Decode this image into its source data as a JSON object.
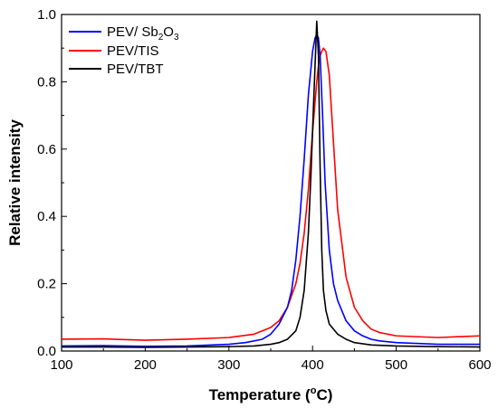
{
  "chart_data": {
    "type": "line",
    "title": "",
    "xlabel": "Temperature (",
    "xlabel_unit": "o",
    "xlabel_unit_suffix": "C)",
    "ylabel": "Relative intensity",
    "xlim": [
      100,
      600
    ],
    "ylim": [
      0,
      1.0
    ],
    "xticks": [
      100,
      200,
      300,
      400,
      500,
      600
    ],
    "yticks": [
      0.0,
      0.2,
      0.4,
      0.6,
      0.8,
      1.0
    ],
    "xtick_labels": [
      "100",
      "200",
      "300",
      "400",
      "500",
      "600"
    ],
    "ytick_labels": [
      "0.0",
      "0.2",
      "0.4",
      "0.6",
      "0.8",
      "1.0"
    ],
    "grid": false,
    "legend_position": "top-left",
    "series": [
      {
        "name": "PEV/ Sb",
        "name_sub1": "2",
        "name_mid": "O",
        "name_sub2": "3",
        "color": "#0000ff",
        "x": [
          100,
          150,
          200,
          250,
          300,
          320,
          340,
          350,
          360,
          370,
          375,
          380,
          385,
          390,
          395,
          400,
          403,
          405,
          407,
          409,
          412,
          415,
          420,
          425,
          430,
          440,
          450,
          460,
          470,
          480,
          500,
          550,
          600
        ],
        "y": [
          0.015,
          0.016,
          0.014,
          0.015,
          0.02,
          0.025,
          0.035,
          0.05,
          0.08,
          0.13,
          0.18,
          0.27,
          0.4,
          0.57,
          0.76,
          0.89,
          0.93,
          0.94,
          0.93,
          0.88,
          0.7,
          0.5,
          0.3,
          0.2,
          0.15,
          0.09,
          0.06,
          0.045,
          0.035,
          0.03,
          0.025,
          0.02,
          0.02
        ]
      },
      {
        "name": "PEV/TIS",
        "color": "#ff0000",
        "x": [
          100,
          150,
          200,
          250,
          300,
          330,
          350,
          360,
          370,
          380,
          385,
          390,
          395,
          400,
          405,
          408,
          411,
          413,
          416,
          420,
          425,
          430,
          440,
          450,
          460,
          470,
          480,
          500,
          550,
          600
        ],
        "y": [
          0.035,
          0.036,
          0.032,
          0.035,
          0.04,
          0.05,
          0.07,
          0.09,
          0.13,
          0.2,
          0.26,
          0.35,
          0.48,
          0.65,
          0.8,
          0.87,
          0.89,
          0.9,
          0.89,
          0.82,
          0.62,
          0.42,
          0.22,
          0.13,
          0.09,
          0.065,
          0.055,
          0.045,
          0.04,
          0.045
        ]
      },
      {
        "name": "PEV/TBT",
        "color": "#000000",
        "x": [
          100,
          150,
          200,
          250,
          300,
          330,
          350,
          360,
          370,
          380,
          385,
          390,
          395,
          398,
          401,
          403,
          405,
          407,
          409,
          411,
          413,
          416,
          420,
          430,
          440,
          450,
          470,
          500,
          550,
          600
        ],
        "y": [
          0.012,
          0.012,
          0.011,
          0.012,
          0.013,
          0.015,
          0.02,
          0.025,
          0.035,
          0.06,
          0.1,
          0.18,
          0.35,
          0.52,
          0.72,
          0.85,
          0.98,
          0.88,
          0.55,
          0.3,
          0.18,
          0.12,
          0.08,
          0.05,
          0.035,
          0.025,
          0.018,
          0.015,
          0.013,
          0.012
        ]
      }
    ]
  }
}
